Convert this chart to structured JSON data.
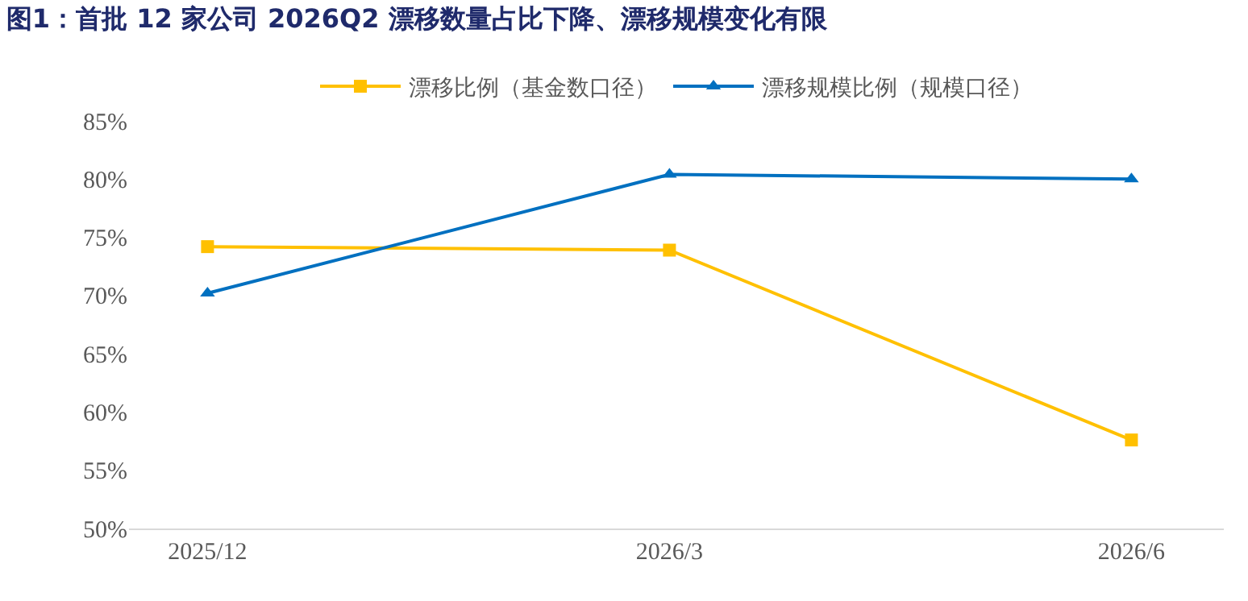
{
  "chart_data": {
    "type": "line",
    "title": "图1：首批 12 家公司 2026Q2 漂移数量占比下降、漂移规模变化有限",
    "categories": [
      "2025/12",
      "2026/3",
      "2026/6"
    ],
    "series": [
      {
        "name": "漂移比例（基金数口径）",
        "color": "#ffc000",
        "marker": "square",
        "values": [
          74.2,
          73.9,
          57.6
        ]
      },
      {
        "name": "漂移规模比例（规模口径）",
        "color": "#0070c0",
        "marker": "triangle",
        "values": [
          70.2,
          80.4,
          80.0
        ]
      }
    ],
    "ylim": [
      50,
      85
    ],
    "yticks": [
      {
        "value": 50,
        "label": "50%"
      },
      {
        "value": 55,
        "label": "55%"
      },
      {
        "value": 60,
        "label": "60%"
      },
      {
        "value": 65,
        "label": "65%"
      },
      {
        "value": 70,
        "label": "70%"
      },
      {
        "value": 75,
        "label": "75%"
      },
      {
        "value": 80,
        "label": "80%"
      },
      {
        "value": 85,
        "label": "85%"
      }
    ],
    "grid": false,
    "legend": "top",
    "line_style": "solid"
  }
}
